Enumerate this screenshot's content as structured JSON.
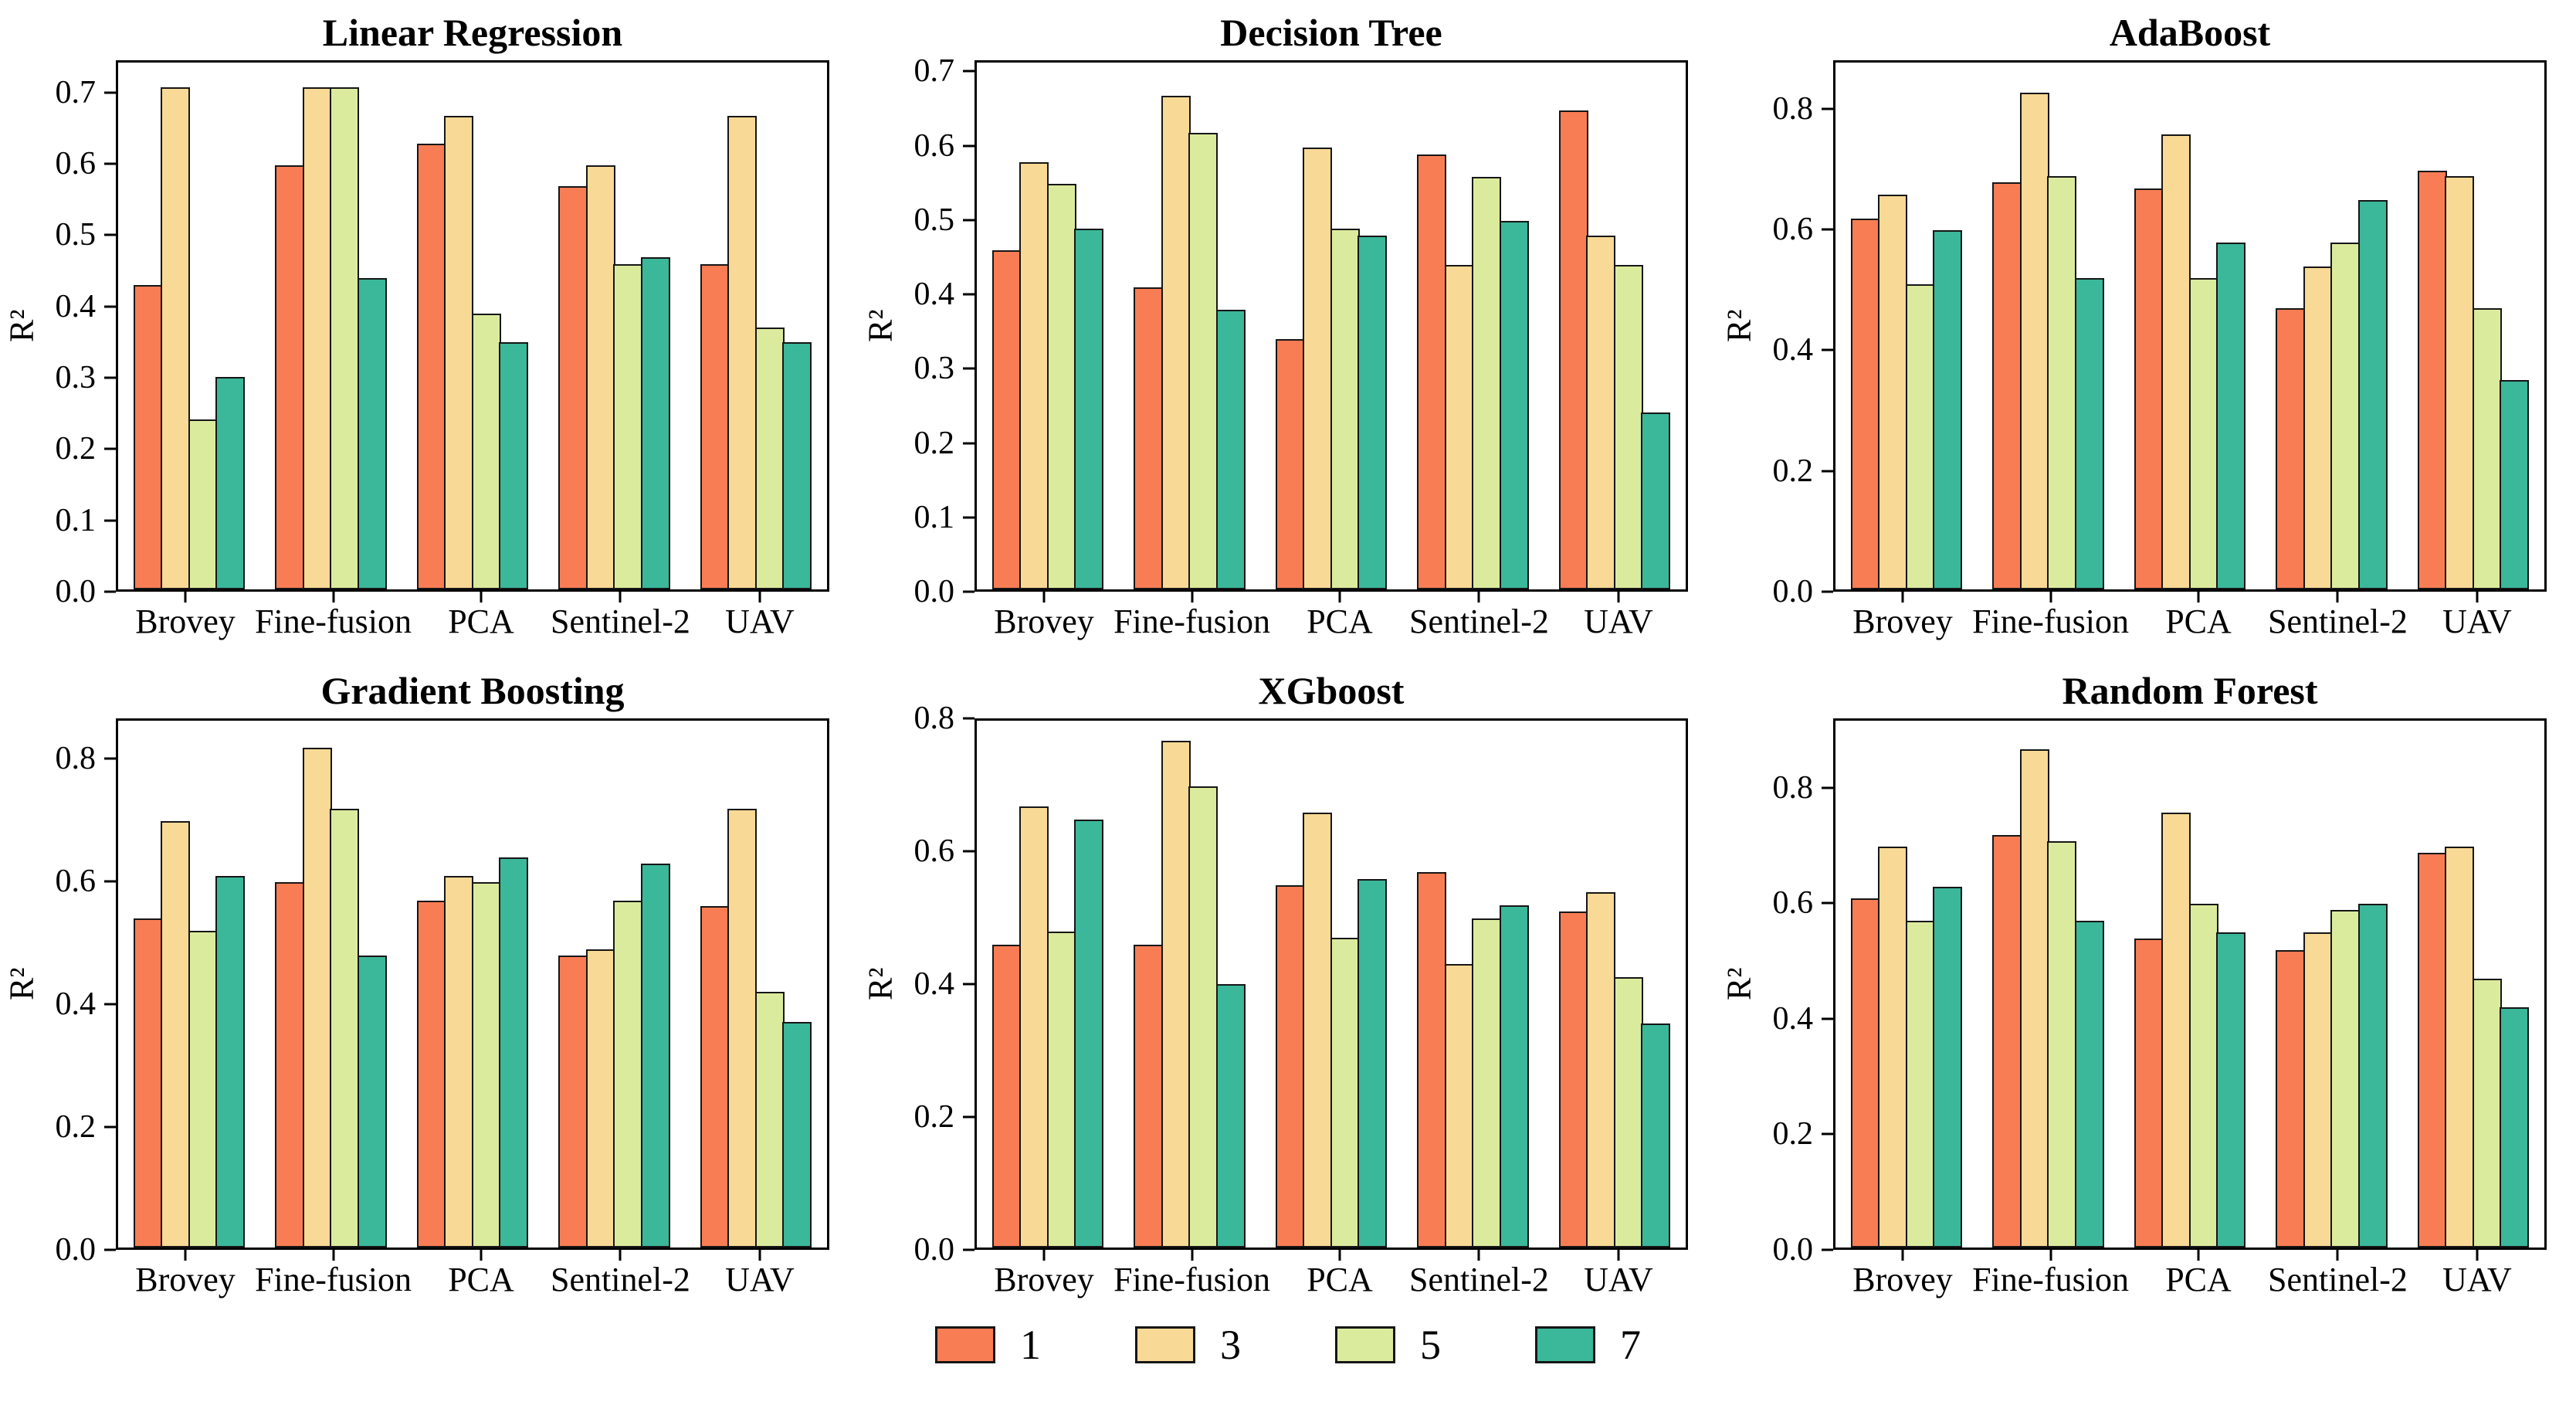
{
  "legend": {
    "items": [
      {
        "label": "1",
        "color": "#F87D54"
      },
      {
        "label": "3",
        "color": "#F8D995"
      },
      {
        "label": "5",
        "color": "#DBEB9E"
      },
      {
        "label": "7",
        "color": "#3BB79A"
      }
    ]
  },
  "chart_data": [
    {
      "type": "bar",
      "title": "Linear Regression",
      "ylabel": "R²",
      "categories": [
        "Brovey",
        "Fine-fusion",
        "PCA",
        "Sentinel-2",
        "UAV"
      ],
      "series": [
        {
          "name": "1",
          "values": [
            0.43,
            0.6,
            0.63,
            0.57,
            0.46
          ]
        },
        {
          "name": "3",
          "values": [
            0.71,
            0.71,
            0.67,
            0.6,
            0.67
          ]
        },
        {
          "name": "5",
          "values": [
            0.24,
            0.71,
            0.39,
            0.46,
            0.37
          ]
        },
        {
          "name": "7",
          "values": [
            0.3,
            0.44,
            0.35,
            0.47,
            0.35
          ]
        }
      ],
      "yticks": [
        "0.0",
        "0.1",
        "0.2",
        "0.3",
        "0.4",
        "0.5",
        "0.6",
        "0.7"
      ],
      "ylim": [
        0,
        0.745
      ],
      "grid": false,
      "legend_position": "figure-bottom"
    },
    {
      "type": "bar",
      "title": "Decision Tree",
      "ylabel": "R²",
      "categories": [
        "Brovey",
        "Fine-fusion",
        "PCA",
        "Sentinel-2",
        "UAV"
      ],
      "series": [
        {
          "name": "1",
          "values": [
            0.46,
            0.41,
            0.34,
            0.59,
            0.65
          ]
        },
        {
          "name": "3",
          "values": [
            0.58,
            0.67,
            0.6,
            0.44,
            0.48
          ]
        },
        {
          "name": "5",
          "values": [
            0.55,
            0.62,
            0.49,
            0.56,
            0.44
          ]
        },
        {
          "name": "7",
          "values": [
            0.49,
            0.38,
            0.48,
            0.5,
            0.24
          ]
        }
      ],
      "yticks": [
        "0.0",
        "0.1",
        "0.2",
        "0.3",
        "0.4",
        "0.5",
        "0.6",
        "0.7"
      ],
      "ylim": [
        0,
        0.715
      ],
      "grid": false,
      "legend_position": "figure-bottom"
    },
    {
      "type": "bar",
      "title": "AdaBoost",
      "ylabel": "R²",
      "categories": [
        "Brovey",
        "Fine-fusion",
        "PCA",
        "Sentinel-2",
        "UAV"
      ],
      "series": [
        {
          "name": "1",
          "values": [
            0.62,
            0.68,
            0.67,
            0.47,
            0.7
          ]
        },
        {
          "name": "3",
          "values": [
            0.66,
            0.83,
            0.76,
            0.54,
            0.69
          ]
        },
        {
          "name": "5",
          "values": [
            0.51,
            0.69,
            0.52,
            0.58,
            0.47
          ]
        },
        {
          "name": "7",
          "values": [
            0.6,
            0.52,
            0.58,
            0.65,
            0.35
          ]
        }
      ],
      "yticks": [
        "0.0",
        "0.2",
        "0.4",
        "0.6",
        "0.8"
      ],
      "ylim": [
        0,
        0.88
      ],
      "grid": false,
      "legend_position": "figure-bottom"
    },
    {
      "type": "bar",
      "title": "Gradient Boosting",
      "ylabel": "R²",
      "categories": [
        "Brovey",
        "Fine-fusion",
        "PCA",
        "Sentinel-2",
        "UAV"
      ],
      "series": [
        {
          "name": "1",
          "values": [
            0.54,
            0.6,
            0.57,
            0.48,
            0.56
          ]
        },
        {
          "name": "3",
          "values": [
            0.7,
            0.82,
            0.61,
            0.49,
            0.72
          ]
        },
        {
          "name": "5",
          "values": [
            0.52,
            0.72,
            0.6,
            0.57,
            0.42
          ]
        },
        {
          "name": "7",
          "values": [
            0.61,
            0.48,
            0.64,
            0.63,
            0.37
          ]
        }
      ],
      "yticks": [
        "0.0",
        "0.2",
        "0.4",
        "0.6",
        "0.8"
      ],
      "ylim": [
        0,
        0.865
      ],
      "grid": false,
      "legend_position": "figure-bottom"
    },
    {
      "type": "bar",
      "title": "XGboost",
      "ylabel": "R²",
      "categories": [
        "Brovey",
        "Fine-fusion",
        "PCA",
        "Sentinel-2",
        "UAV"
      ],
      "series": [
        {
          "name": "1",
          "values": [
            0.46,
            0.46,
            0.55,
            0.57,
            0.51
          ]
        },
        {
          "name": "3",
          "values": [
            0.67,
            0.77,
            0.66,
            0.43,
            0.54
          ]
        },
        {
          "name": "5",
          "values": [
            0.48,
            0.7,
            0.47,
            0.5,
            0.41
          ]
        },
        {
          "name": "7",
          "values": [
            0.65,
            0.4,
            0.56,
            0.52,
            0.34
          ]
        }
      ],
      "yticks": [
        "0.0",
        "0.2",
        "0.4",
        "0.6",
        "0.8"
      ],
      "ylim": [
        0,
        0.8
      ],
      "grid": false,
      "legend_position": "figure-bottom"
    },
    {
      "type": "bar",
      "title": "Random Forest",
      "ylabel": "R²",
      "categories": [
        "Brovey",
        "Fine-fusion",
        "PCA",
        "Sentinel-2",
        "UAV"
      ],
      "series": [
        {
          "name": "1",
          "values": [
            0.61,
            0.72,
            0.54,
            0.52,
            0.69
          ]
        },
        {
          "name": "3",
          "values": [
            0.7,
            0.87,
            0.76,
            0.55,
            0.7
          ]
        },
        {
          "name": "5",
          "values": [
            0.57,
            0.71,
            0.6,
            0.59,
            0.47
          ]
        },
        {
          "name": "7",
          "values": [
            0.63,
            0.57,
            0.55,
            0.6,
            0.42
          ]
        }
      ],
      "yticks": [
        "0.0",
        "0.2",
        "0.4",
        "0.6",
        "0.8"
      ],
      "ylim": [
        0,
        0.92
      ],
      "grid": false,
      "legend_position": "figure-bottom"
    }
  ]
}
